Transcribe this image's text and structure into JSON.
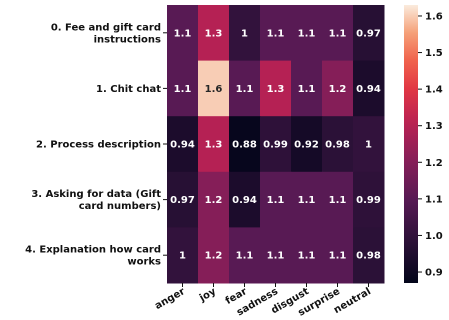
{
  "chart_data": {
    "type": "heatmap",
    "rows": [
      [
        "0. Fee and gift card",
        "instructions"
      ],
      [
        "1. Chit chat"
      ],
      [
        "2. Process description"
      ],
      [
        "3. Asking for data (Gift",
        "card numbers)"
      ],
      [
        "4. Explanation how card",
        "works"
      ]
    ],
    "columns": [
      "anger",
      "joy",
      "fear",
      "sadness",
      "disgust",
      "surprise",
      "neutral"
    ],
    "values": [
      [
        1.1,
        1.3,
        1.0,
        1.1,
        1.1,
        1.1,
        0.97
      ],
      [
        1.1,
        1.6,
        1.1,
        1.3,
        1.1,
        1.2,
        0.94
      ],
      [
        0.94,
        1.3,
        0.88,
        0.99,
        0.92,
        0.98,
        1.0
      ],
      [
        0.97,
        1.2,
        0.94,
        1.1,
        1.1,
        1.1,
        0.99
      ],
      [
        1.0,
        1.2,
        1.1,
        1.1,
        1.1,
        1.1,
        0.98
      ]
    ],
    "cell_labels": [
      [
        "1.1",
        "1.3",
        "1",
        "1.1",
        "1.1",
        "1.1",
        "0.97"
      ],
      [
        "1.1",
        "1.6",
        "1.1",
        "1.3",
        "1.1",
        "1.2",
        "0.94"
      ],
      [
        "0.94",
        "1.3",
        "0.88",
        "0.99",
        "0.92",
        "0.98",
        "1"
      ],
      [
        "0.97",
        "1.2",
        "0.94",
        "1.1",
        "1.1",
        "1.1",
        "0.99"
      ],
      [
        "1",
        "1.2",
        "1.1",
        "1.1",
        "1.1",
        "1.1",
        "0.98"
      ]
    ],
    "colormap": "rocket",
    "colorbar": {
      "range": [
        0.87,
        1.63
      ],
      "ticks": [
        0.9,
        1.0,
        1.1,
        1.2,
        1.3,
        1.4,
        1.5,
        1.6
      ],
      "tick_labels": [
        "0.9",
        "1.0",
        "1.1",
        "1.2",
        "1.3",
        "1.4",
        "1.5",
        "1.6"
      ]
    },
    "title": "",
    "xlabel": "",
    "ylabel": ""
  }
}
